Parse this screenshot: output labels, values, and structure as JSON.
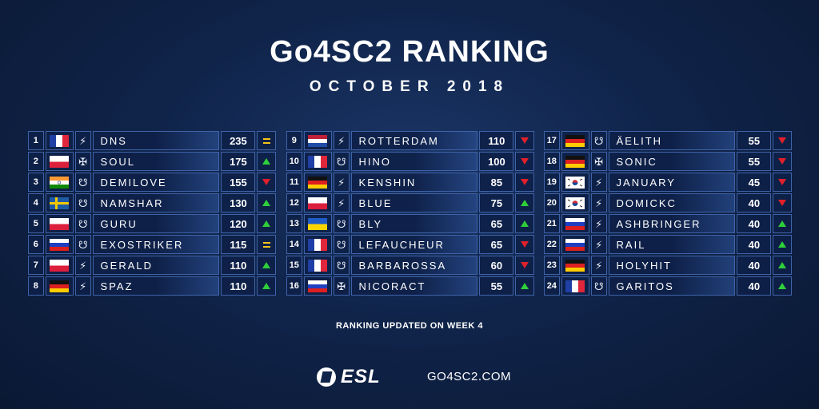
{
  "header": {
    "title": "Go4SC2 RANKING",
    "subtitle": "OCTOBER 2018"
  },
  "colors": {
    "up": "#2fcf3a",
    "down": "#e0202a",
    "same": "#f2c31a",
    "border": "#3f63a8"
  },
  "columns": [
    [
      {
        "rank": "1",
        "flag": "fr",
        "race": "protoss",
        "name": "DNS",
        "points": "235",
        "change": "same"
      },
      {
        "rank": "2",
        "flag": "pl",
        "race": "terran",
        "name": "SOUL",
        "points": "175",
        "change": "up"
      },
      {
        "rank": "3",
        "flag": "in",
        "race": "zerg",
        "name": "DEMILOVE",
        "points": "155",
        "change": "down"
      },
      {
        "rank": "4",
        "flag": "se",
        "race": "zerg",
        "name": "NAMSHAR",
        "points": "130",
        "change": "up"
      },
      {
        "rank": "5",
        "flag": "pl",
        "race": "zerg",
        "name": "GURU",
        "points": "120",
        "change": "up"
      },
      {
        "rank": "6",
        "flag": "ru",
        "race": "zerg",
        "name": "EXOSTRIKER",
        "points": "115",
        "change": "same"
      },
      {
        "rank": "7",
        "flag": "pl",
        "race": "protoss",
        "name": "GERALD",
        "points": "110",
        "change": "up"
      },
      {
        "rank": "8",
        "flag": "de",
        "race": "protoss",
        "name": "SPAZ",
        "points": "110",
        "change": "up"
      }
    ],
    [
      {
        "rank": "9",
        "flag": "nl",
        "race": "protoss",
        "name": "ROTTERDAM",
        "points": "110",
        "change": "down"
      },
      {
        "rank": "10",
        "flag": "fr",
        "race": "zerg",
        "name": "HINO",
        "points": "100",
        "change": "down"
      },
      {
        "rank": "11",
        "flag": "de",
        "race": "protoss",
        "name": "KENSHIN",
        "points": "85",
        "change": "down"
      },
      {
        "rank": "12",
        "flag": "pl",
        "race": "protoss",
        "name": "BLUE",
        "points": "75",
        "change": "up"
      },
      {
        "rank": "13",
        "flag": "ua",
        "race": "zerg",
        "name": "BLY",
        "points": "65",
        "change": "up"
      },
      {
        "rank": "14",
        "flag": "fr",
        "race": "zerg",
        "name": "LEFAUCHEUR",
        "points": "65",
        "change": "down"
      },
      {
        "rank": "15",
        "flag": "fr",
        "race": "zerg",
        "name": "BARBAROSSA",
        "points": "60",
        "change": "down"
      },
      {
        "rank": "16",
        "flag": "ru",
        "race": "terran",
        "name": "NICORACT",
        "points": "55",
        "change": "up"
      }
    ],
    [
      {
        "rank": "17",
        "flag": "de",
        "race": "zerg",
        "name": "ÄELITH",
        "points": "55",
        "change": "down"
      },
      {
        "rank": "18",
        "flag": "de",
        "race": "terran",
        "name": "SONIC",
        "points": "55",
        "change": "down"
      },
      {
        "rank": "19",
        "flag": "kr",
        "race": "protoss",
        "name": "JANUARY",
        "points": "45",
        "change": "down"
      },
      {
        "rank": "20",
        "flag": "kr",
        "race": "protoss",
        "name": "DOMICKC",
        "points": "40",
        "change": "down"
      },
      {
        "rank": "21",
        "flag": "ru",
        "race": "protoss",
        "name": "ASHBRINGER",
        "points": "40",
        "change": "up"
      },
      {
        "rank": "22",
        "flag": "ru",
        "race": "protoss",
        "name": "RAIL",
        "points": "40",
        "change": "up"
      },
      {
        "rank": "23",
        "flag": "de",
        "race": "protoss",
        "name": "HOLYHIT",
        "points": "40",
        "change": "up"
      },
      {
        "rank": "24",
        "flag": "fr",
        "race": "zerg",
        "name": "GARITOS",
        "points": "40",
        "change": "up"
      }
    ]
  ],
  "footer": {
    "updated": "RANKING UPDATED ON WEEK 4",
    "brand": "ESL",
    "site": "GO4SC2.COM"
  }
}
